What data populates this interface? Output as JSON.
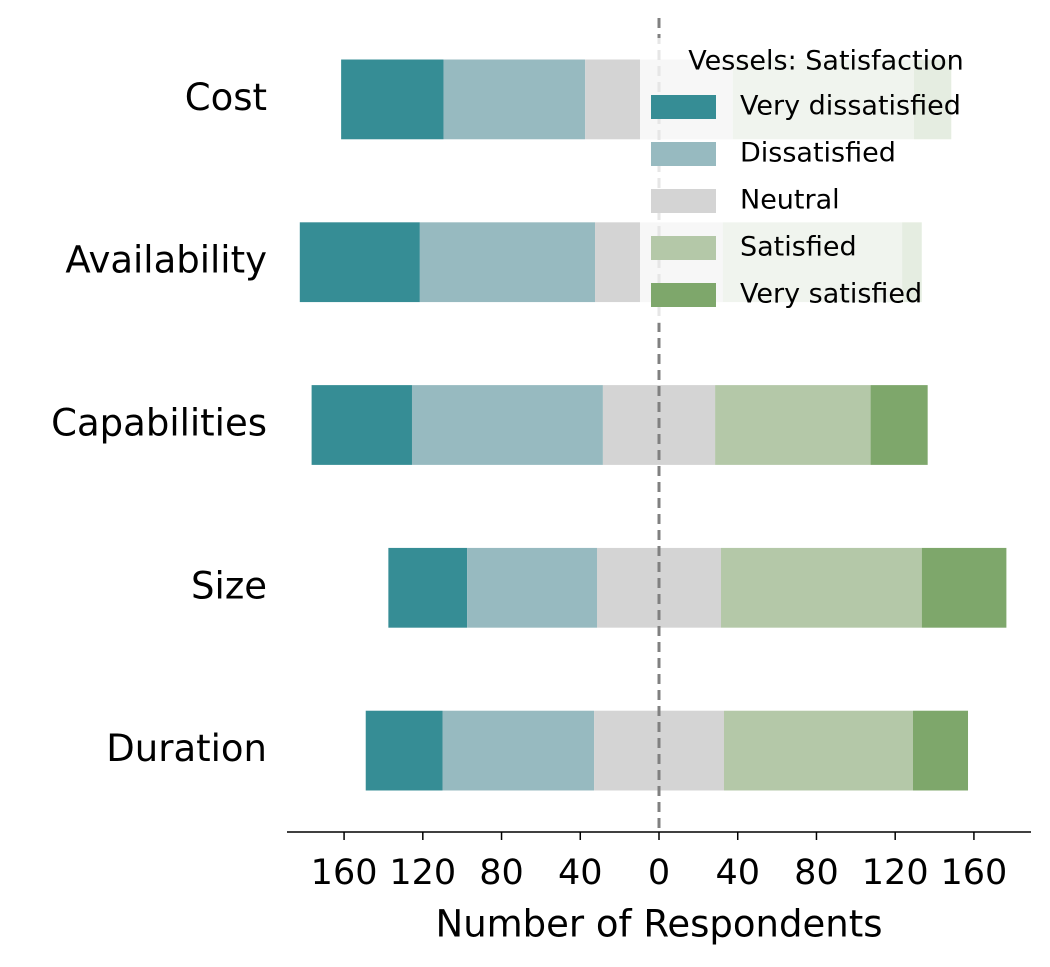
{
  "chart_data": {
    "type": "diverging-bar",
    "categories": [
      "Cost",
      "Availability",
      "Capabilities",
      "Size",
      "Duration"
    ],
    "series": [
      {
        "name": "Very dissatisfied",
        "color": "#368d95",
        "values": [
          52,
          61,
          51,
          40,
          39
        ]
      },
      {
        "name": "Dissatisfied",
        "color": "#97bac0",
        "values": [
          72,
          89,
          97,
          66,
          77
        ]
      },
      {
        "name": "Neutral",
        "color": "#d4d4d4",
        "values": [
          75,
          65,
          57,
          63,
          66
        ]
      },
      {
        "name": "Satisfied",
        "color": "#b4c8a8",
        "values": [
          92,
          91,
          79,
          102,
          96
        ]
      },
      {
        "name": "Very satisfied",
        "color": "#7ea76b",
        "values": [
          19,
          10,
          29,
          43,
          28
        ]
      }
    ],
    "center_series": "Neutral",
    "xlabel": "Number of Respondents",
    "legend_title": "Vessels: Satisfaction",
    "legend": "upper right",
    "xlim": [
      -189,
      189
    ],
    "xticks": [
      {
        "value": -160,
        "label": "160"
      },
      {
        "value": -120,
        "label": "120"
      },
      {
        "value": -80,
        "label": "80"
      },
      {
        "value": -40,
        "label": "40"
      },
      0,
      40,
      80,
      120,
      160
    ],
    "zero_line": true
  }
}
